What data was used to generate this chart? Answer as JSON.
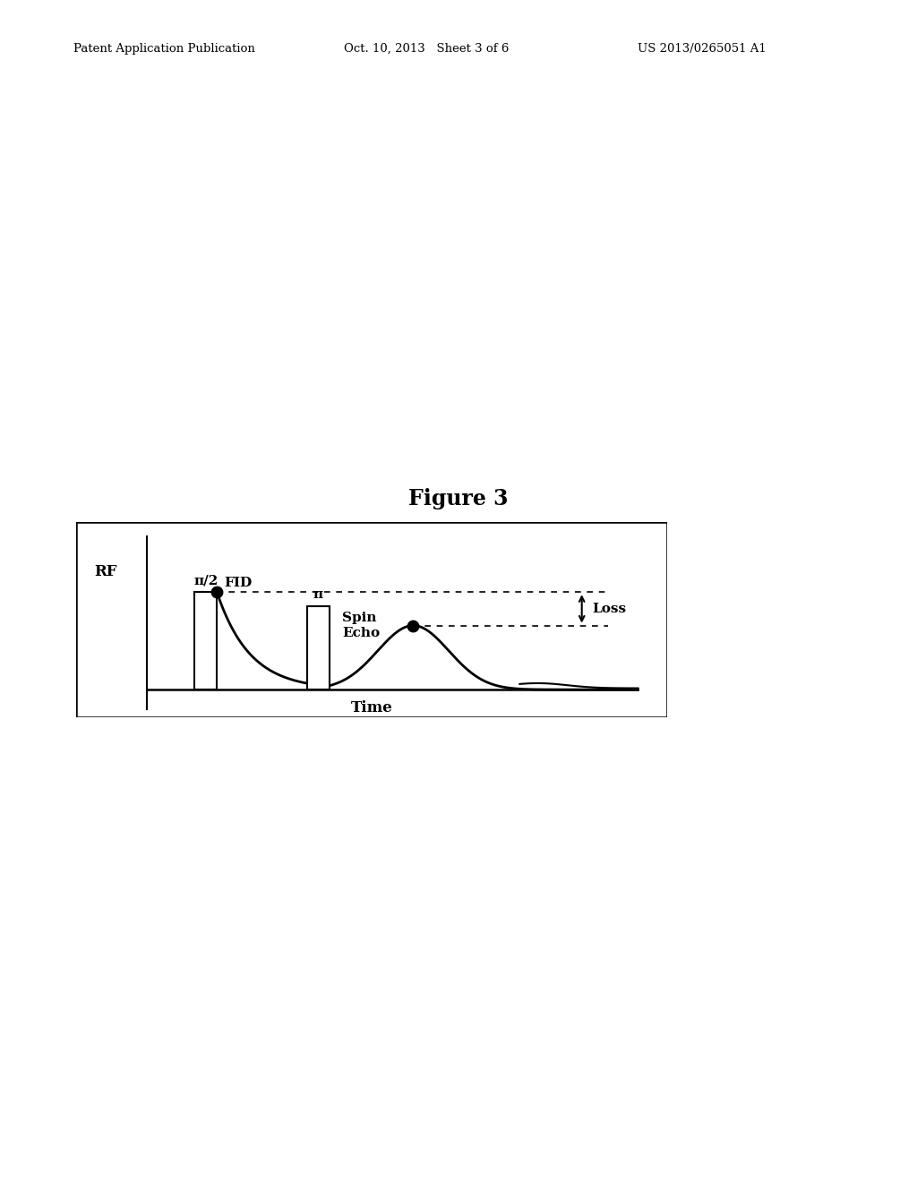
{
  "figure_title": "Figure 3",
  "header_left": "Patent Application Publication",
  "header_center": "Oct. 10, 2013   Sheet 3 of 6",
  "header_right": "US 2013/0265051 A1",
  "rf_label": "RF",
  "pi_half_label": "π/2",
  "pi_label": "π",
  "fid_label": "FID",
  "spin_echo_label": "Spin\nEcho",
  "loss_label": "Loss",
  "time_label": "Time",
  "bg_color": "#ffffff",
  "box_facecolor": "#f0f0f0",
  "signal_color": "#000000",
  "pulse_facecolor": "#ffffff",
  "pulse_edgecolor": "#000000",
  "header_fontsize": 9.5,
  "title_fontsize": 17,
  "label_fontsize": 11
}
